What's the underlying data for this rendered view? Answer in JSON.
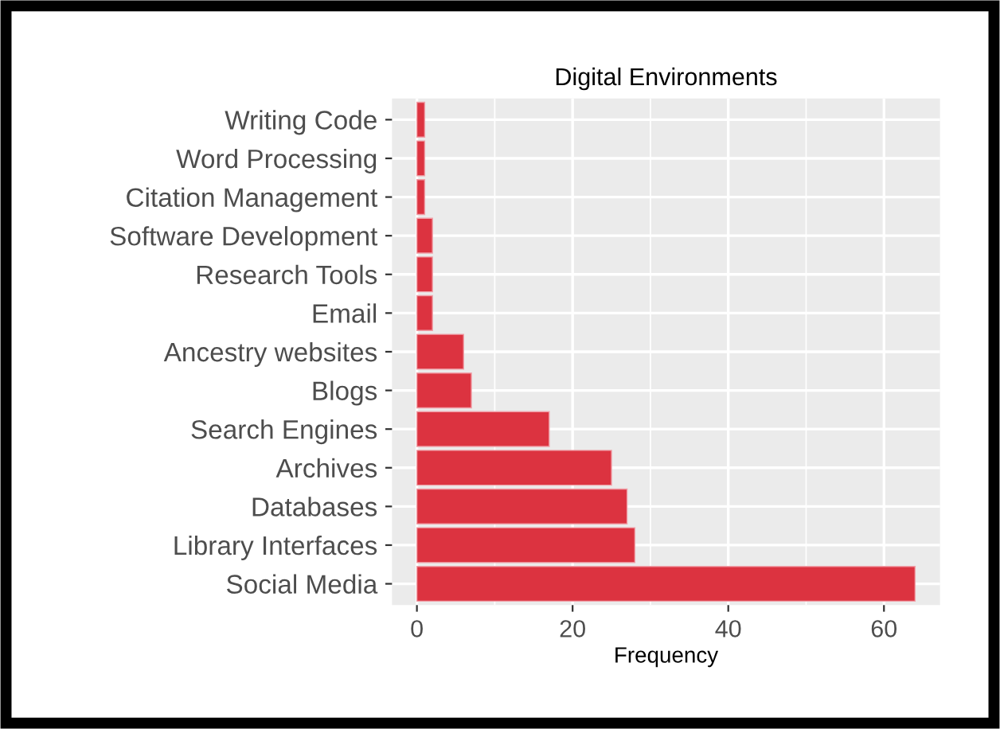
{
  "chart_data": {
    "type": "bar",
    "orientation": "horizontal",
    "title": "Digital Environments",
    "xlabel": "Frequency",
    "categories": [
      "Writing Code",
      "Word Processing",
      "Citation Management",
      "Software Development",
      "Research Tools",
      "Email",
      "Ancestry websites",
      "Blogs",
      "Search Engines",
      "Archives",
      "Databases",
      "Library Interfaces",
      "Social Media"
    ],
    "values": [
      1,
      1,
      1,
      2,
      2,
      2,
      6,
      7,
      17,
      25,
      27,
      28,
      64
    ],
    "color": "#dc3340",
    "xlim": [
      -3.2,
      67.2
    ],
    "xticks": [
      0,
      20,
      40,
      60
    ],
    "grid": true
  }
}
